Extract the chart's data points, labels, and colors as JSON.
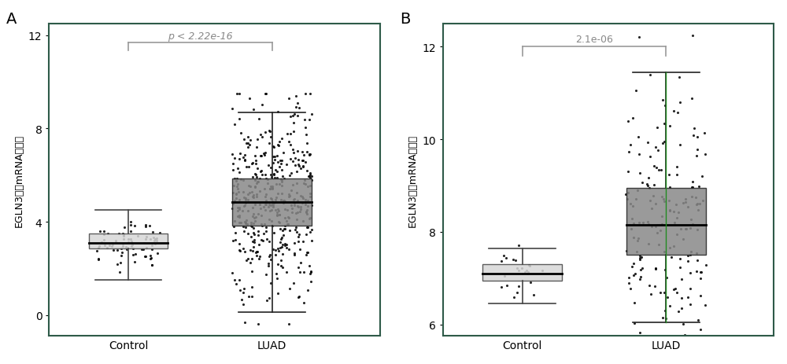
{
  "panel_A": {
    "label": "A",
    "ylabel": "EGLN3基因mRNA表达量",
    "pvalue_text": "p < 2.22e-16",
    "ylim": [
      -0.9,
      12.5
    ],
    "yticks": [
      0,
      4,
      8,
      12
    ],
    "xlim": [
      0.45,
      2.75
    ],
    "xtick_pos": [
      1,
      2
    ],
    "groups": [
      "Control",
      "LUAD"
    ],
    "control": {
      "median": 3.1,
      "q1": 2.85,
      "q3": 3.5,
      "whislo": 1.5,
      "whishi": 4.5,
      "n_points": 80,
      "jitter_seed": 42,
      "box_color": "#d8d8d8",
      "edge_color": "#444444",
      "dot_jitter": 0.22
    },
    "luad": {
      "median": 4.85,
      "q1": 3.85,
      "q3": 5.85,
      "whislo": 0.12,
      "whishi": 8.7,
      "n_points": 480,
      "jitter_seed": 43,
      "box_color": "#888888",
      "edge_color": "#222222",
      "dot_jitter": 0.28
    },
    "bracket_y": 11.7,
    "bracket_drop": 0.35,
    "pval_color": "#888888",
    "border_color": "#3a5a4a",
    "green_line": false
  },
  "panel_B": {
    "label": "B",
    "ylabel": "EGLN3基因mRNA表达量",
    "pvalue_text": "2.1e-06",
    "ylim": [
      5.75,
      12.5
    ],
    "yticks": [
      6,
      8,
      10,
      12
    ],
    "xlim": [
      0.45,
      2.75
    ],
    "xtick_pos": [
      1,
      2
    ],
    "groups": [
      "Control",
      "LUAD"
    ],
    "control": {
      "median": 7.1,
      "q1": 6.95,
      "q3": 7.3,
      "whislo": 6.45,
      "whishi": 7.65,
      "n_points": 25,
      "jitter_seed": 10,
      "box_color": "#d8d8d8",
      "edge_color": "#444444",
      "dot_jitter": 0.15
    },
    "luad": {
      "median": 8.15,
      "q1": 7.5,
      "q3": 8.95,
      "whislo": 6.05,
      "whishi": 11.45,
      "n_points": 200,
      "jitter_seed": 44,
      "box_color": "#888888",
      "edge_color": "#222222",
      "dot_jitter": 0.28
    },
    "bracket_y": 12.0,
    "bracket_drop": 0.2,
    "pval_color": "#888888",
    "border_color": "#3a6a5a",
    "green_line": true
  },
  "box_width": 0.55,
  "dot_size": 5,
  "dot_alpha": 0.85,
  "fig_bg": "#ffffff",
  "font_size": 10,
  "label_font_size": 14,
  "spine_color": "#2e5a48",
  "median_lw": 2.0,
  "whisker_lw": 1.2
}
